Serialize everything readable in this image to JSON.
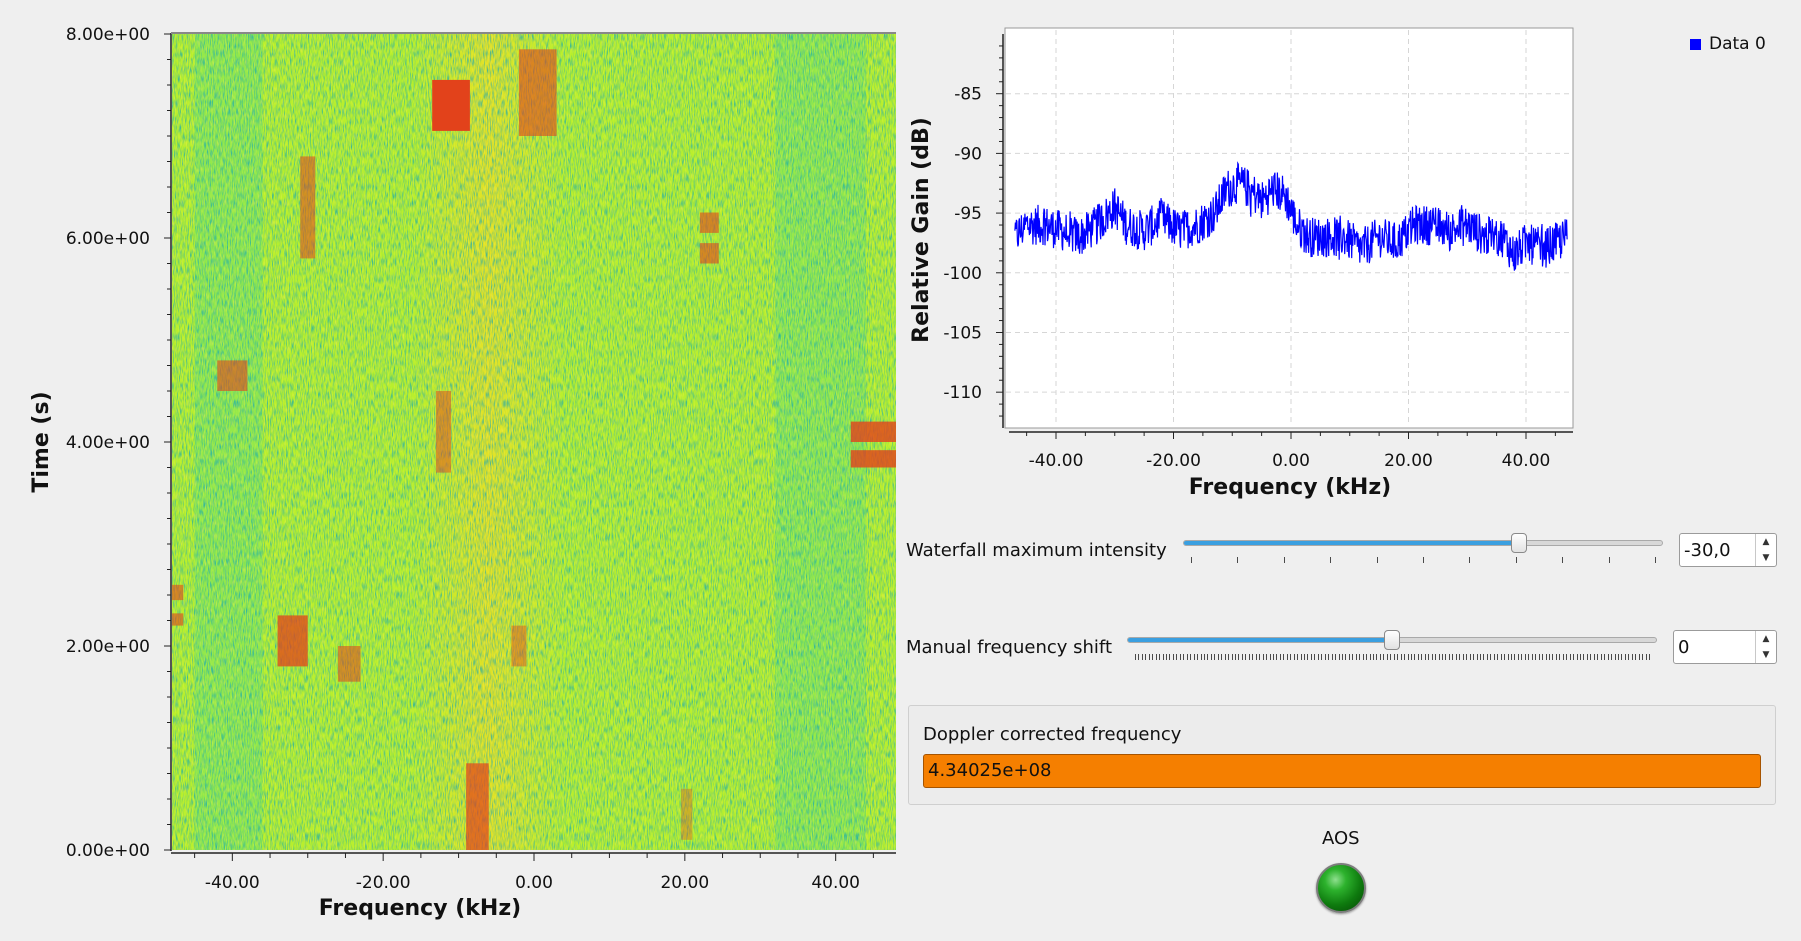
{
  "waterfall": {
    "y_axis_title": "Time (s)",
    "x_axis_title": "Frequency (kHz)",
    "y_ticks": [
      {
        "value": 8,
        "label": "8.00e+00"
      },
      {
        "value": 6,
        "label": "6.00e+00"
      },
      {
        "value": 4,
        "label": "4.00e+00"
      },
      {
        "value": 2,
        "label": "2.00e+00"
      },
      {
        "value": 0,
        "label": "0.00e+00"
      }
    ],
    "x_ticks": [
      {
        "value": -40,
        "label": "-40.00"
      },
      {
        "value": -20,
        "label": "-20.00"
      },
      {
        "value": 0,
        "label": "0.00"
      },
      {
        "value": 20,
        "label": "20.00"
      },
      {
        "value": 40,
        "label": "40.00"
      }
    ],
    "colors": {
      "low": "#29d6a0",
      "mid": "#b8ef2c",
      "high": "#f0dd22",
      "peak": "#e2421b"
    }
  },
  "chart_data": {
    "type": "line",
    "title": "",
    "xlabel": "Frequency (kHz)",
    "ylabel": "Relative Gain (dB)",
    "xlim": [
      -48,
      48
    ],
    "ylim": [
      -113,
      -80
    ],
    "grid": true,
    "legend_placement": "top-right",
    "x_ticks": [
      {
        "value": -40,
        "label": "-40.00"
      },
      {
        "value": -20,
        "label": "-20.00"
      },
      {
        "value": 0,
        "label": "0.00"
      },
      {
        "value": 20,
        "label": "20.00"
      },
      {
        "value": 40,
        "label": "40.00"
      }
    ],
    "y_ticks": [
      {
        "value": -85,
        "label": "-85"
      },
      {
        "value": -90,
        "label": "-90"
      },
      {
        "value": -95,
        "label": "-95"
      },
      {
        "value": -100,
        "label": "-100"
      },
      {
        "value": -105,
        "label": "-105"
      },
      {
        "value": -110,
        "label": "-110"
      }
    ],
    "series": [
      {
        "name": "Data 0",
        "color": "#0000ff",
        "x": [
          -47,
          -45,
          -42,
          -39,
          -36,
          -33,
          -30,
          -28,
          -25,
          -22,
          -19,
          -16,
          -13,
          -11,
          -9,
          -7,
          -5,
          -3,
          -1,
          1,
          3,
          6,
          9,
          12,
          15,
          18,
          21,
          24,
          27,
          30,
          33,
          36,
          38,
          40,
          43,
          45,
          47
        ],
        "y": [
          -97,
          -96,
          -96,
          -96.5,
          -97,
          -96,
          -94.5,
          -96,
          -96.5,
          -95.5,
          -96.5,
          -96,
          -95,
          -93,
          -92.5,
          -93,
          -94,
          -93,
          -93.5,
          -96,
          -97,
          -97,
          -97,
          -98,
          -97,
          -97.5,
          -96,
          -96,
          -96.5,
          -96,
          -97,
          -97,
          -98.5,
          -97.5,
          -98,
          -97.5,
          -97
        ]
      }
    ]
  },
  "controls": {
    "waterfall_max": {
      "label": "Waterfall maximum intensity",
      "value": "-30,0",
      "fraction": 0.7
    },
    "freq_shift": {
      "label": "Manual frequency shift",
      "value": "0",
      "fraction": 0.5
    }
  },
  "doppler": {
    "title": "Doppler corrected frequency",
    "value": "4.34025e+08"
  },
  "aos": {
    "label": "AOS"
  }
}
